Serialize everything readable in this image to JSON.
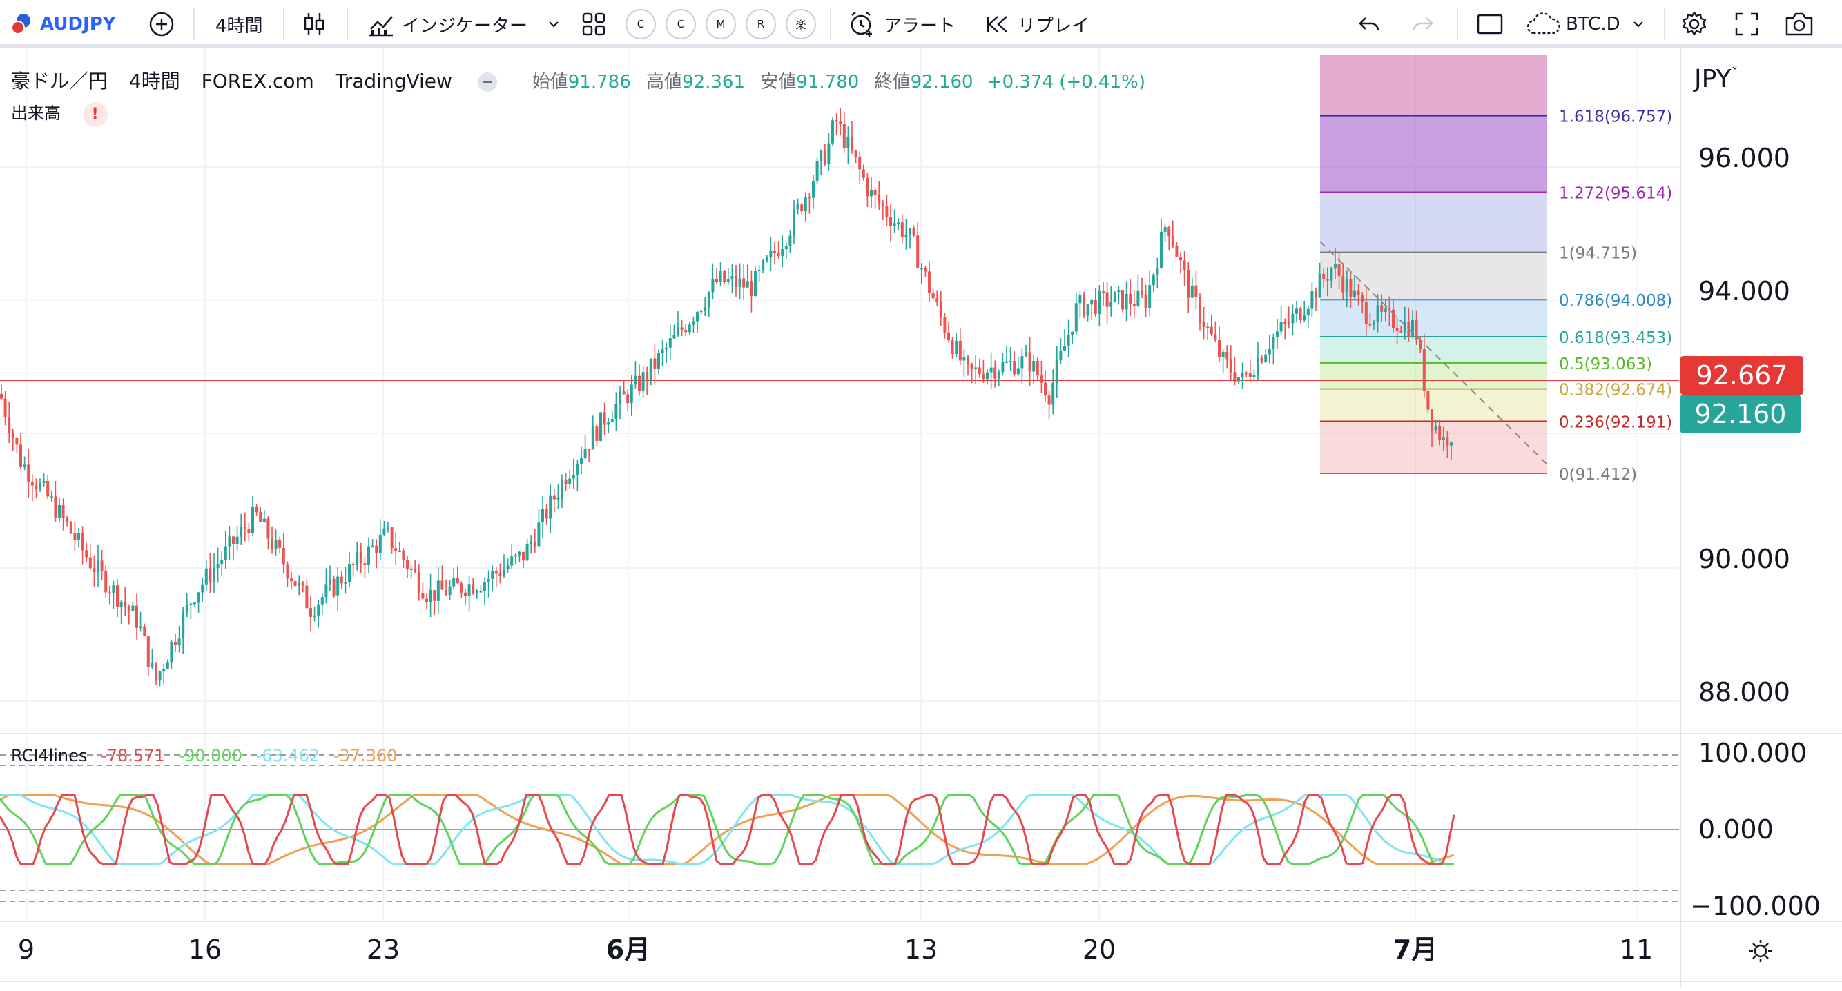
{
  "toolbar": {
    "symbol": "AUDJPY",
    "interval": "4時間",
    "indicators_label": "インジケーター",
    "circle_buttons": [
      "C",
      "C",
      "M",
      "R",
      "楽"
    ],
    "alert_label": "アラート",
    "replay_label": "リプレイ",
    "compare_symbol": "BTC.D"
  },
  "legend": {
    "title": "豪ドル／円",
    "interval": "4時間",
    "exchange": "FOREX.com",
    "source": "TradingView",
    "open_label": "始値",
    "open": "91.786",
    "high_label": "高値",
    "high": "92.361",
    "low_label": "安値",
    "low": "91.780",
    "close_label": "終値",
    "close": "92.160",
    "change": "+0.374 (+0.41%)",
    "volume_label": "出来高"
  },
  "price_axis": {
    "currency": "JPY",
    "ticks": [
      "96.000",
      "94.000",
      "90.000",
      "88.000"
    ],
    "last_price": "92.160",
    "line_price": "92.667"
  },
  "fib": {
    "levels": [
      {
        "ratio": "1.618",
        "value": "96.757",
        "label": "1.618(96.757)",
        "color": "#3b2fa5"
      },
      {
        "ratio": "1.272",
        "value": "95.614",
        "label": "1.272(95.614)",
        "color": "#9c27b0"
      },
      {
        "ratio": "1",
        "value": "94.715",
        "label": "1(94.715)",
        "color": "#7a7a7a"
      },
      {
        "ratio": "0.786",
        "value": "94.008",
        "label": "0.786(94.008)",
        "color": "#2f88c3"
      },
      {
        "ratio": "0.618",
        "value": "93.453",
        "label": "0.618(93.453)",
        "color": "#26a69a"
      },
      {
        "ratio": "0.5",
        "value": "93.063",
        "label": "0.5(93.063)",
        "color": "#5cb82a"
      },
      {
        "ratio": "0.382",
        "value": "92.674",
        "label": "0.382(92.674)",
        "color": "#c8a43a"
      },
      {
        "ratio": "0.236",
        "value": "92.191",
        "label": "0.236(92.191)",
        "color": "#c62828"
      },
      {
        "ratio": "0",
        "value": "91.412",
        "label": "0(91.412)",
        "color": "#7a7a7a"
      }
    ]
  },
  "rci": {
    "title": "RCI4lines",
    "v1": "-78.571",
    "v2": "-90.000",
    "v3": "-63.462",
    "v4": "-37.360",
    "ticks": [
      "100.000",
      "0.000",
      "−100.000"
    ]
  },
  "time_axis": {
    "labels": [
      "9",
      "16",
      "23",
      "6月",
      "13",
      "20",
      "7月",
      "11"
    ]
  },
  "colors": {
    "up": "#26a69a",
    "down": "#ef5350",
    "rci1": "#e5484d",
    "rci2": "#5fd35a",
    "rci3": "#7ee6f0",
    "rci4": "#f0a050",
    "brand": "#2962ff"
  }
}
